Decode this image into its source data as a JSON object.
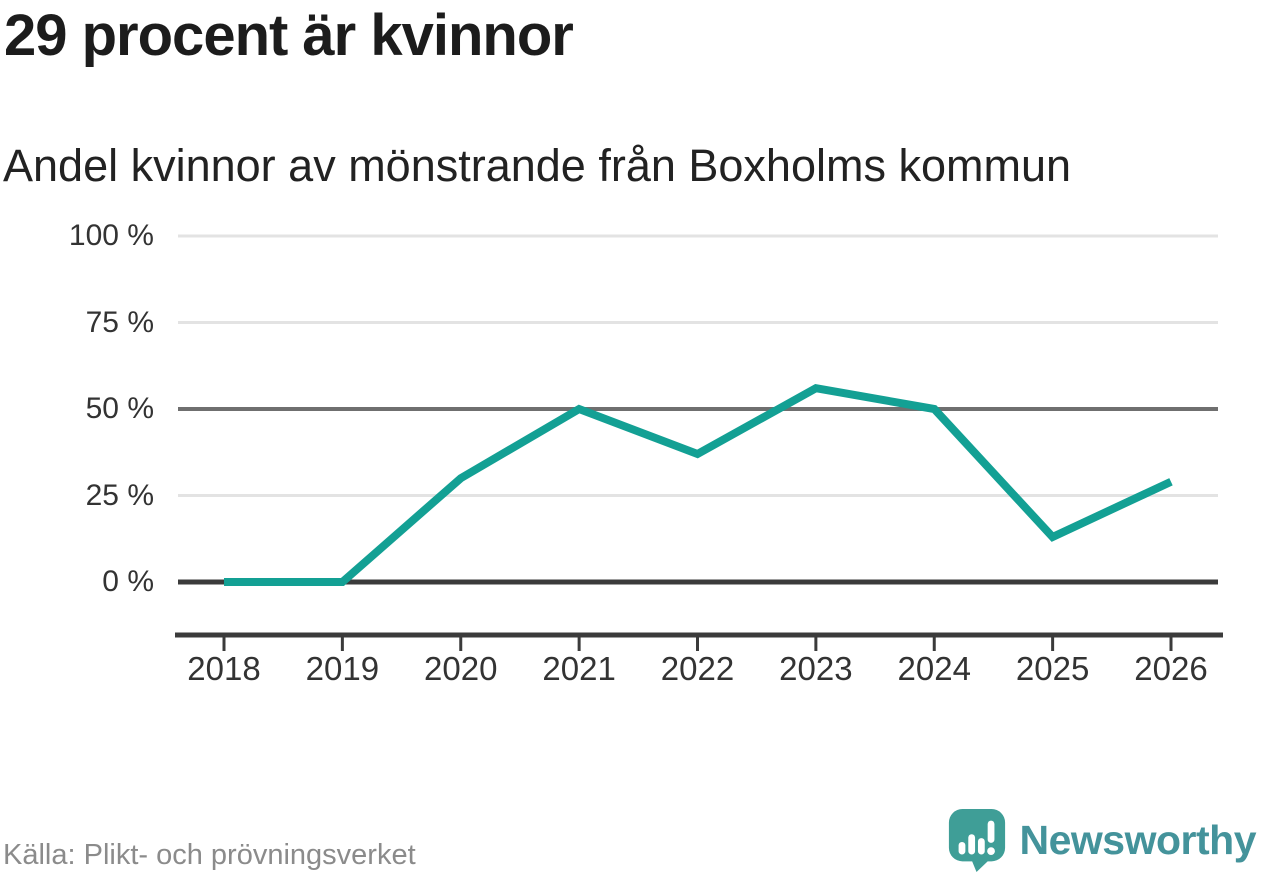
{
  "header": {
    "title": "29 procent är kvinnor",
    "subtitle": "Andel kvinnor av mönstrande från Boxholms kommun"
  },
  "footer": {
    "source": "Källa: Plikt- och prövningsverket",
    "logo_text": "Newsworthy",
    "logo_icon": "bar-chart-speech-bubble-icon"
  },
  "colors": {
    "line": "#13a094",
    "zero_line": "#3b3b3b",
    "mid_gridline": "#6f6f6f",
    "light_gridline": "#e3e3e3",
    "axis": "#333333",
    "tick_text": "#333333",
    "source_text": "#8b8b8b",
    "logo_teal": "#44939b",
    "logo_mark": "#3f9e97"
  },
  "chart_data": {
    "type": "line",
    "title": "29 procent är kvinnor",
    "subtitle": "Andel kvinnor av mönstrande från Boxholms kommun",
    "x": [
      2018,
      2019,
      2020,
      2021,
      2022,
      2023,
      2024,
      2025,
      2026
    ],
    "values": [
      0,
      0,
      30,
      50,
      37,
      56,
      50,
      13,
      29
    ],
    "unit": "%",
    "ylim": [
      0,
      100
    ],
    "yticks": [
      0,
      25,
      50,
      75,
      100
    ],
    "ytick_labels": [
      "0 %",
      "25 %",
      "50 %",
      "75 %",
      "100 %"
    ],
    "xlabel": "",
    "ylabel": "",
    "grid": "horizontal",
    "legend": "none",
    "emphasized_gridlines": [
      0,
      50
    ]
  }
}
